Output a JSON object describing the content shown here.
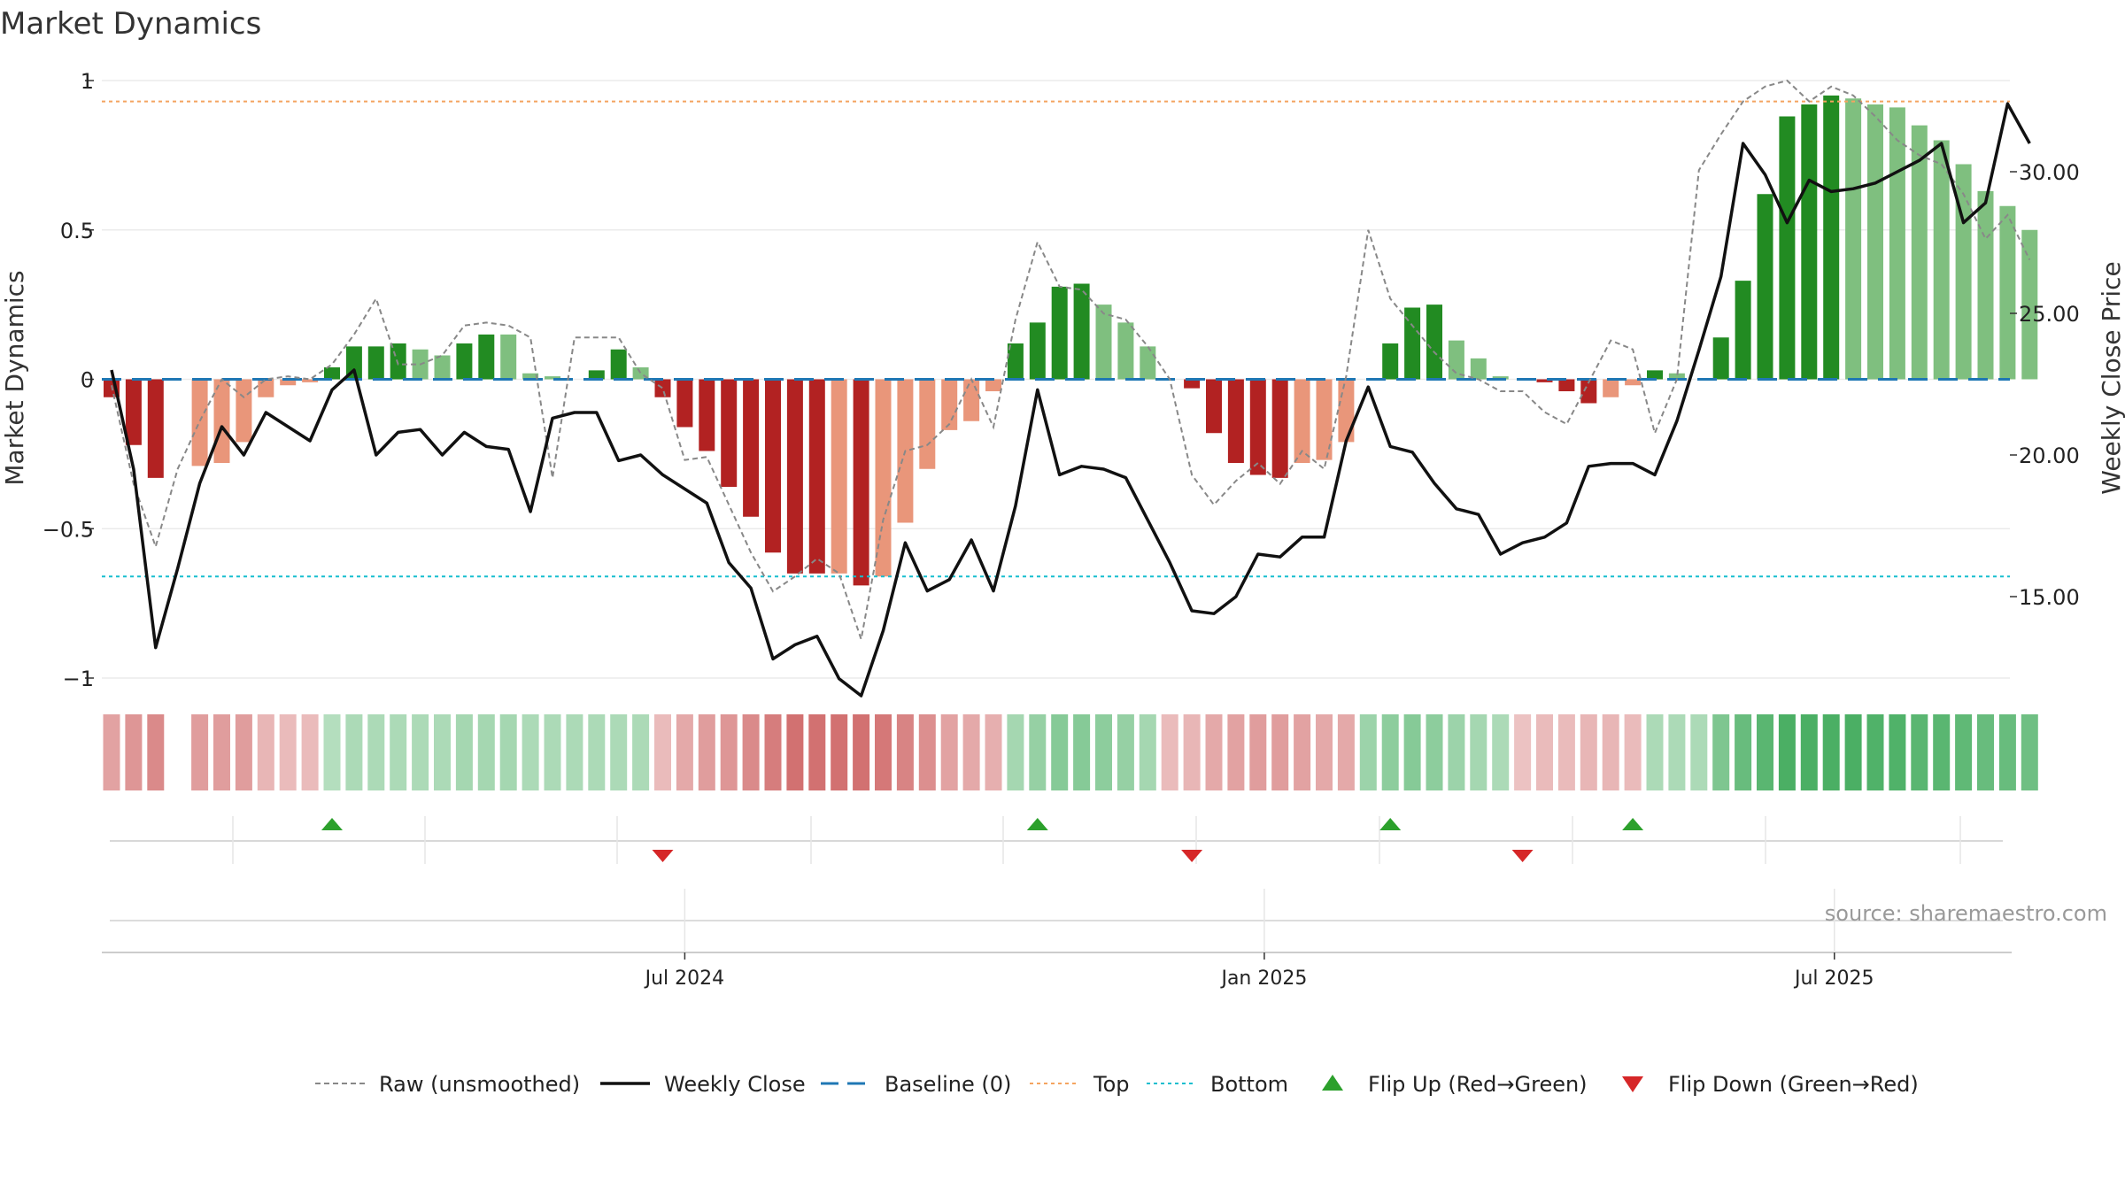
{
  "chart_data": {
    "type": "bar",
    "title": "Market Dynamics",
    "ylabel_left": "Market Dynamics",
    "ylabel_right": "Weekly Close Price",
    "source": "source: sharemaestro.com",
    "x_tick_labels": [
      "Jul 2024",
      "Jan 2025",
      "Jul 2025"
    ],
    "x_tick_dates": [
      "2024-07-01",
      "2025-01-01",
      "2025-07-01"
    ],
    "x_start_date": "2024-01-01",
    "week_days": 7,
    "ylim_left": [
      -1,
      1
    ],
    "yticks_left": [
      1,
      0.5,
      0,
      -0.5,
      -1
    ],
    "ytick_labels_left": [
      "1",
      "0.5",
      "0",
      "−0.5",
      "−1"
    ],
    "ylim_right": [
      12.5,
      35.0
    ],
    "yticks_right": [
      15,
      20,
      25,
      30
    ],
    "ytick_labels_right": [
      "15.00",
      "20.00",
      "25.00",
      "30.00"
    ],
    "top_line": 0.93,
    "bottom_line": -0.66,
    "baseline": 0,
    "colors": {
      "strong_red": "#b22222",
      "light_red": "#e9967a",
      "strong_green": "#228b22",
      "light_green": "#7fbf7f",
      "weekly_close": "#111111",
      "raw": "#888888",
      "baseline": "#1f77b4",
      "top": "#f4a460",
      "bottom": "#17becf",
      "flip_up": "#2ca02c",
      "flip_down": "#d62728"
    },
    "series": [
      {
        "name": "Market Dynamics",
        "values": [
          -0.06,
          -0.22,
          -0.33,
          0,
          -0.29,
          -0.28,
          -0.21,
          -0.06,
          -0.02,
          -0.01,
          0.04,
          0.11,
          0.11,
          0.12,
          0.1,
          0.08,
          0.12,
          0.15,
          0.15,
          0.02,
          0.01,
          0,
          0.03,
          0.1,
          0.04,
          -0.06,
          -0.16,
          -0.24,
          -0.36,
          -0.46,
          -0.58,
          -0.65,
          -0.65,
          -0.65,
          -0.69,
          -0.66,
          -0.48,
          -0.3,
          -0.17,
          -0.14,
          -0.04,
          0.12,
          0.19,
          0.31,
          0.32,
          0.25,
          0.19,
          0.11,
          0,
          -0.03,
          -0.18,
          -0.28,
          -0.32,
          -0.33,
          -0.28,
          -0.27,
          -0.21,
          0,
          0.12,
          0.24,
          0.25,
          0.13,
          0.07,
          0.01,
          0,
          -0.01,
          -0.04,
          -0.08,
          -0.06,
          -0.02,
          0.03,
          0.02,
          0,
          0.14,
          0.33,
          0.62,
          0.88,
          0.92,
          0.95,
          0.94,
          0.92,
          0.91,
          0.85,
          0.8,
          0.72,
          0.63,
          0.58,
          0.5
        ],
        "shade": [
          "s",
          "s",
          "s",
          "n",
          "l",
          "l",
          "l",
          "l",
          "l",
          "l",
          "s",
          "s",
          "s",
          "s",
          "l",
          "l",
          "s",
          "s",
          "l",
          "l",
          "l",
          "l",
          "s",
          "s",
          "l",
          "s",
          "s",
          "s",
          "s",
          "s",
          "s",
          "s",
          "s",
          "l",
          "s",
          "l",
          "l",
          "l",
          "l",
          "l",
          "l",
          "s",
          "s",
          "s",
          "s",
          "l",
          "l",
          "l",
          "l",
          "s",
          "s",
          "s",
          "s",
          "s",
          "l",
          "l",
          "l",
          "l",
          "s",
          "s",
          "s",
          "l",
          "l",
          "l",
          "l",
          "s",
          "s",
          "s",
          "l",
          "l",
          "s",
          "l",
          "l",
          "s",
          "s",
          "s",
          "s",
          "s",
          "s",
          "l",
          "l",
          "l",
          "l",
          "l",
          "l",
          "l",
          "l",
          "l"
        ]
      },
      {
        "name": "Raw (unsmoothed)",
        "values": [
          -0.02,
          -0.35,
          -0.56,
          -0.3,
          -0.14,
          0,
          -0.06,
          0,
          0.01,
          0,
          0.05,
          0.15,
          0.27,
          0.05,
          0.05,
          0.08,
          0.18,
          0.19,
          0.18,
          0.14,
          -0.33,
          0.14,
          0.14,
          0.14,
          0.02,
          -0.03,
          -0.27,
          -0.26,
          -0.42,
          -0.58,
          -0.71,
          -0.66,
          -0.6,
          -0.65,
          -0.87,
          -0.47,
          -0.24,
          -0.22,
          -0.15,
          0,
          -0.16,
          0.2,
          0.46,
          0.31,
          0.3,
          0.22,
          0.2,
          0.11,
          0,
          -0.32,
          -0.42,
          -0.34,
          -0.28,
          -0.35,
          -0.24,
          -0.3,
          0.01,
          0.5,
          0.27,
          0.18,
          0.09,
          0.02,
          0,
          -0.04,
          -0.04,
          -0.11,
          -0.15,
          -0.01,
          0.13,
          0.1,
          -0.18,
          0,
          0.7,
          0.82,
          0.93,
          0.98,
          1.0,
          0.93,
          0.98,
          0.95,
          0.88,
          0.8,
          0.75,
          0.72,
          0.62,
          0.47,
          0.55,
          0.4
        ]
      },
      {
        "name": "Weekly Close",
        "values": [
          23.0,
          19.5,
          13.2,
          16.0,
          19.0,
          21.0,
          20.0,
          21.5,
          21.0,
          20.5,
          22.3,
          23.0,
          20.0,
          20.8,
          20.9,
          20.0,
          20.8,
          20.3,
          20.2,
          18.0,
          21.3,
          21.5,
          21.5,
          19.8,
          20.0,
          19.3,
          18.8,
          18.3,
          16.2,
          15.3,
          12.8,
          13.3,
          13.6,
          12.1,
          11.5,
          13.8,
          16.9,
          15.2,
          15.6,
          17.0,
          15.2,
          18.2,
          22.3,
          19.3,
          19.6,
          19.5,
          19.2,
          17.7,
          16.2,
          14.5,
          14.4,
          15.0,
          16.5,
          16.4,
          17.1,
          17.1,
          20.5,
          22.4,
          20.3,
          20.1,
          19.0,
          18.1,
          17.9,
          16.5,
          16.9,
          17.1,
          17.6,
          19.6,
          19.7,
          19.7,
          19.3,
          21.2,
          23.7,
          26.3,
          31.0,
          29.9,
          28.2,
          29.7,
          29.3,
          29.4,
          29.6,
          30.0,
          30.4,
          31.0,
          28.2,
          28.9,
          32.4,
          31.0
        ]
      },
      {
        "name": "Baseline (0)"
      },
      {
        "name": "Top"
      },
      {
        "name": "Bottom"
      }
    ],
    "state_strip": [
      -0.5,
      -0.6,
      -0.7,
      null,
      -0.55,
      -0.55,
      -0.55,
      -0.35,
      -0.3,
      -0.3,
      0.25,
      0.3,
      0.3,
      0.3,
      0.3,
      0.3,
      0.35,
      0.35,
      0.35,
      0.3,
      0.3,
      0.3,
      0.3,
      0.3,
      0.3,
      -0.3,
      -0.45,
      -0.55,
      -0.6,
      -0.7,
      -0.8,
      -0.9,
      -0.9,
      -0.9,
      -0.9,
      -0.85,
      -0.75,
      -0.65,
      -0.5,
      -0.45,
      -0.4,
      0.35,
      0.45,
      0.55,
      0.55,
      0.5,
      0.45,
      0.35,
      -0.3,
      -0.35,
      -0.45,
      -0.5,
      -0.55,
      -0.55,
      -0.5,
      -0.45,
      -0.45,
      0.4,
      0.5,
      0.55,
      0.5,
      0.4,
      0.35,
      0.3,
      -0.25,
      -0.3,
      -0.3,
      -0.35,
      -0.35,
      -0.3,
      0.3,
      0.3,
      0.3,
      0.6,
      0.75,
      0.85,
      0.95,
      0.95,
      0.95,
      0.95,
      0.9,
      0.9,
      0.85,
      0.85,
      0.8,
      0.75,
      0.75,
      0.7
    ],
    "flips": [
      {
        "week": 10,
        "direction": "up"
      },
      {
        "week": 25,
        "direction": "down"
      },
      {
        "week": 42,
        "direction": "up"
      },
      {
        "week": 49,
        "direction": "down"
      },
      {
        "week": 58,
        "direction": "up"
      },
      {
        "week": 64,
        "direction": "down"
      },
      {
        "week": 69,
        "direction": "up"
      }
    ],
    "legend": [
      {
        "label": "Raw (unsmoothed)",
        "style": "dashed-grey"
      },
      {
        "label": "Weekly Close",
        "style": "solid-black"
      },
      {
        "label": "Baseline (0)",
        "style": "dashed-blue"
      },
      {
        "label": "Top",
        "style": "dotted-orange"
      },
      {
        "label": "Bottom",
        "style": "dotted-cyan"
      },
      {
        "label": "Flip Up (Red→Green)",
        "style": "triangle-up-green"
      },
      {
        "label": "Flip Down (Green→Red)",
        "style": "triangle-down-red"
      }
    ]
  }
}
